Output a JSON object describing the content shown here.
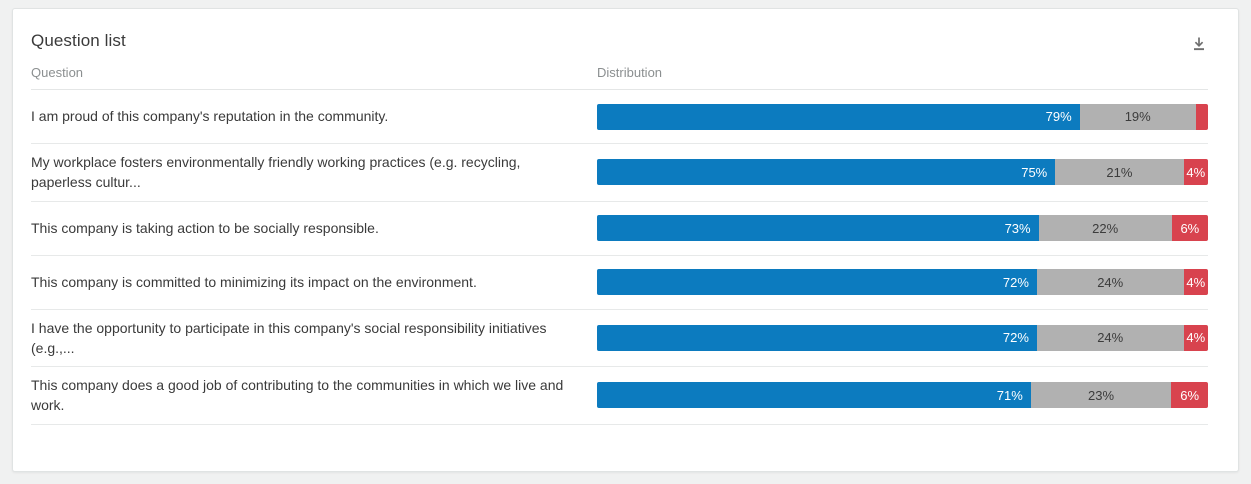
{
  "card": {
    "title": "Question list"
  },
  "toolbar": {
    "download_icon": "download-icon"
  },
  "columns": {
    "question": "Question",
    "distribution": "Distribution"
  },
  "colors": {
    "favorable": "#0c7bbf",
    "neutral": "#b1b1b1",
    "unfavorable": "#d8434e"
  },
  "table": {
    "rows": [
      {
        "question": "I am proud of this company's reputation in the community.",
        "favorable": 79,
        "neutral": 19,
        "unfavorable": 2,
        "favorable_label": "79%",
        "neutral_label": "19%",
        "unfavorable_label": ""
      },
      {
        "question": "My workplace fosters environmentally friendly working practices (e.g. recycling, paperless cultur...",
        "favorable": 75,
        "neutral": 21,
        "unfavorable": 4,
        "favorable_label": "75%",
        "neutral_label": "21%",
        "unfavorable_label": "4%"
      },
      {
        "question": "This company is taking action to be socially responsible.",
        "favorable": 73,
        "neutral": 22,
        "unfavorable": 6,
        "favorable_label": "73%",
        "neutral_label": "22%",
        "unfavorable_label": "6%"
      },
      {
        "question": "This company is committed to minimizing its impact on the environment.",
        "favorable": 72,
        "neutral": 24,
        "unfavorable": 4,
        "favorable_label": "72%",
        "neutral_label": "24%",
        "unfavorable_label": "4%"
      },
      {
        "question": "I have the opportunity to participate in this company's social responsibility initiatives (e.g.,...",
        "favorable": 72,
        "neutral": 24,
        "unfavorable": 4,
        "favorable_label": "72%",
        "neutral_label": "24%",
        "unfavorable_label": "4%"
      },
      {
        "question": "This company does a good job of contributing to the communities in which we live and work.",
        "favorable": 71,
        "neutral": 23,
        "unfavorable": 6,
        "favorable_label": "71%",
        "neutral_label": "23%",
        "unfavorable_label": "6%"
      }
    ]
  }
}
